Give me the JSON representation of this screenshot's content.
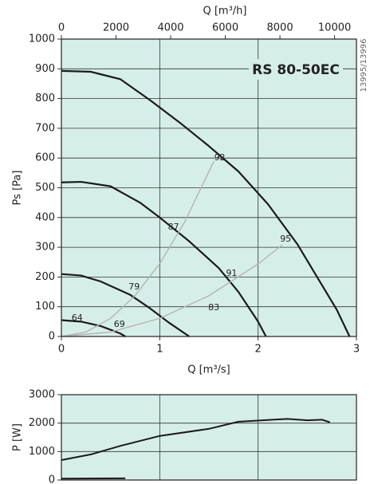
{
  "chart_data": [
    {
      "type": "line",
      "title": "RS 80-50EC",
      "side_note": "13995/13996",
      "xlabel": "Q [m³/s]",
      "x2label": "Q [m³/h]",
      "ylabel": "Ps [Pa]",
      "xlim": [
        0,
        3
      ],
      "xticks": [
        0,
        1,
        2,
        3
      ],
      "x2lim": [
        0,
        10800
      ],
      "x2ticks": [
        0,
        2000,
        4000,
        6000,
        8000,
        10000
      ],
      "ylim": [
        0,
        1000
      ],
      "yticks": [
        0,
        100,
        200,
        300,
        400,
        500,
        600,
        700,
        800,
        900,
        1000
      ],
      "grid": true,
      "background": "#d6eeea",
      "series": [
        {
          "color": "#1a1a1a",
          "width": 2.2,
          "x": [
            0,
            0.3,
            0.6,
            0.9,
            1.2,
            1.5,
            1.8,
            2.1,
            2.4,
            2.6,
            2.8,
            2.93
          ],
          "values": [
            893,
            890,
            865,
            795,
            720,
            640,
            555,
            445,
            310,
            200,
            90,
            0
          ]
        },
        {
          "color": "#1a1a1a",
          "width": 2.2,
          "x": [
            0,
            0.2,
            0.5,
            0.8,
            1.0,
            1.3,
            1.6,
            1.8,
            2.0,
            2.08
          ],
          "values": [
            518,
            520,
            505,
            450,
            400,
            320,
            230,
            150,
            50,
            0
          ]
        },
        {
          "color": "#1a1a1a",
          "width": 2.2,
          "x": [
            0,
            0.2,
            0.4,
            0.7,
            0.9,
            1.1,
            1.3
          ],
          "values": [
            210,
            205,
            185,
            140,
            95,
            45,
            0
          ]
        },
        {
          "color": "#1a1a1a",
          "width": 2.2,
          "x": [
            0,
            0.2,
            0.4,
            0.6,
            0.65
          ],
          "values": [
            55,
            50,
            35,
            10,
            0
          ]
        },
        {
          "color": "#b4b4b4",
          "width": 1.4,
          "x": [
            0,
            0.25,
            0.5,
            0.75,
            1.0,
            1.25,
            1.55
          ],
          "values": [
            0,
            15,
            61,
            138,
            245,
            383,
            589
          ]
        },
        {
          "color": "#b4b4b4",
          "width": 1.4,
          "x": [
            0,
            0.5,
            1.0,
            1.5,
            2.0,
            2.25
          ],
          "values": [
            0,
            15,
            61,
            137,
            244,
            309
          ]
        }
      ],
      "annotations": [
        {
          "text": "92",
          "x": 1.61,
          "y": 600
        },
        {
          "text": "87",
          "x": 1.14,
          "y": 367
        },
        {
          "text": "95",
          "x": 2.28,
          "y": 327
        },
        {
          "text": "91",
          "x": 1.73,
          "y": 212
        },
        {
          "text": "79",
          "x": 0.74,
          "y": 166
        },
        {
          "text": "83",
          "x": 1.55,
          "y": 97
        },
        {
          "text": "64",
          "x": 0.16,
          "y": 62
        },
        {
          "text": "69",
          "x": 0.59,
          "y": 40
        }
      ]
    },
    {
      "type": "line",
      "ylabel": "P [W]",
      "xlim": [
        0,
        3
      ],
      "xgrid": [
        1,
        2
      ],
      "ylim": [
        0,
        3000
      ],
      "yticks": [
        0,
        1000,
        2000,
        3000
      ],
      "grid": true,
      "background": "#d6eeea",
      "series": [
        {
          "color": "#1a1a1a",
          "width": 2,
          "x": [
            0,
            0.3,
            0.6,
            1.0,
            1.5,
            1.8,
            2.2,
            2.3,
            2.5,
            2.65,
            2.73
          ],
          "values": [
            700,
            900,
            1200,
            1550,
            1800,
            2050,
            2130,
            2150,
            2100,
            2120,
            2030
          ]
        },
        {
          "color": "#1a1a1a",
          "width": 2,
          "x": [
            0,
            0.65
          ],
          "values": [
            50,
            60
          ]
        }
      ]
    }
  ]
}
